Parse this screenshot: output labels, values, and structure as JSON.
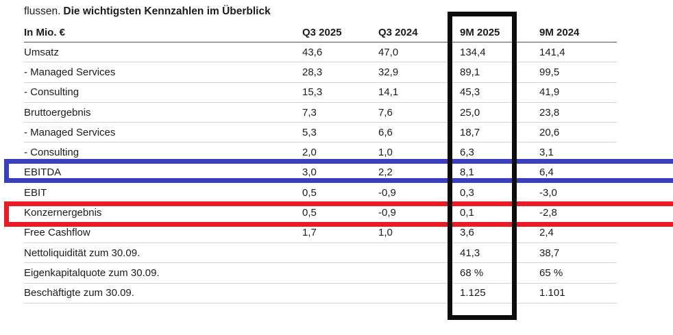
{
  "page": {
    "intro_fragment": "flussen.",
    "title": "Die wichtigsten Kennzahlen im Überblick"
  },
  "table": {
    "unit_header": "In Mio. €",
    "columns": [
      "Q3 2025",
      "Q3 2024",
      "9M 2025",
      "9M 2024"
    ],
    "rows": [
      {
        "label": "Umsatz",
        "values": [
          "43,6",
          "47,0",
          "134,4",
          "141,4"
        ],
        "highlight": null
      },
      {
        "label": "- Managed Services",
        "values": [
          "28,3",
          "32,9",
          "89,1",
          "99,5"
        ],
        "highlight": null
      },
      {
        "label": "- Consulting",
        "values": [
          "15,3",
          "14,1",
          "45,3",
          "41,9"
        ],
        "highlight": null
      },
      {
        "label": "Bruttoergebnis",
        "values": [
          "7,3",
          "7,6",
          "25,0",
          "23,8"
        ],
        "highlight": null
      },
      {
        "label": "- Managed Services",
        "values": [
          "5,3",
          "6,6",
          "18,7",
          "20,6"
        ],
        "highlight": null
      },
      {
        "label": "- Consulting",
        "values": [
          "2,0",
          "1,0",
          "6,3",
          "3,1"
        ],
        "highlight": null
      },
      {
        "label": "EBITDA",
        "values": [
          "3,0",
          "2,2",
          "8,1",
          "6,4"
        ],
        "highlight": "blue"
      },
      {
        "label": "EBIT",
        "values": [
          "0,5",
          "-0,9",
          "0,3",
          "-3,0"
        ],
        "highlight": null
      },
      {
        "label": "Konzernergebnis",
        "values": [
          "0,5",
          "-0,9",
          "0,1",
          "-2,8"
        ],
        "highlight": "red"
      },
      {
        "label": "Free Cashflow",
        "values": [
          "1,7",
          "1,0",
          "3,6",
          "2,4"
        ],
        "highlight": null
      },
      {
        "label": "Nettoliquidität zum 30.09.",
        "values": [
          "",
          "",
          "41,3",
          "38,7"
        ],
        "highlight": null
      },
      {
        "label": "Eigenkapitalquote zum 30.09.",
        "values": [
          "",
          "",
          "68 %",
          "65 %"
        ],
        "highlight": null
      },
      {
        "label": "Beschäftigte zum 30.09.",
        "values": [
          "",
          "",
          "1.125",
          "1.101"
        ],
        "highlight": null
      }
    ]
  },
  "annotations": {
    "column_box": {
      "target": "9M 2025 column",
      "color": "#0d0d0d"
    },
    "ebitda_box": {
      "target": "EBITDA row",
      "color": "#3a3fc1"
    },
    "konzernergebnis_box": {
      "target": "Konzernergebnis row",
      "color": "#e81b27"
    }
  }
}
